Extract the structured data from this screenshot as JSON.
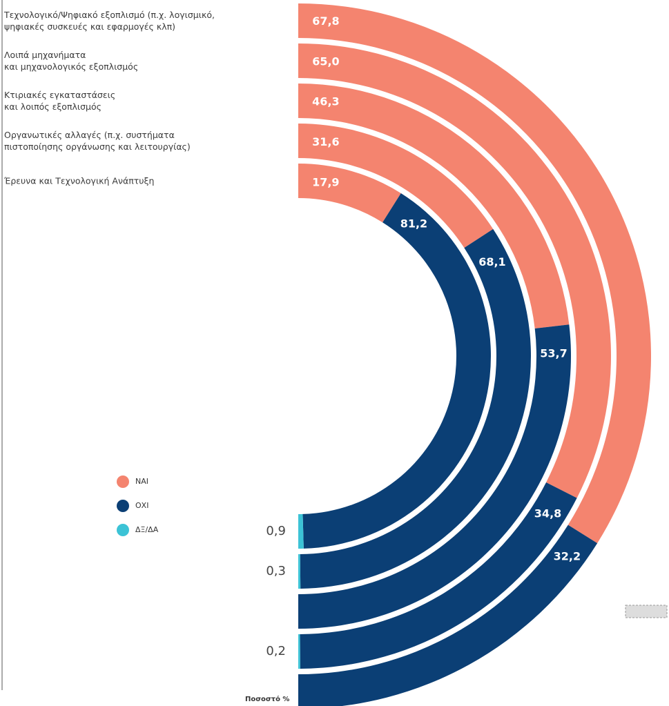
{
  "chart_data": {
    "type": "radial_bar",
    "categories": [
      "Τεχνολογικό/Ψηφιακό εξοπλισμό (π.χ. λογισμικό,\nψηφιακές συσκευές και εφαρμογές κλπ)",
      "Λοιπά μηχανήματα\nκαι μηχανολογικός εξοπλισμός",
      "Κτιριακές εγκαταστάσεις\nκαι λοιπός εξοπλισμός",
      "Οργανωτικές αλλαγές (π.χ. συστήματα\nπιστοποίησης οργάνωσης και λειτουργίας)",
      "Έρευνα και Τεχνολογική Ανάπτυξη"
    ],
    "series": [
      {
        "name": "ΝΑΙ",
        "color": "#f4846f",
        "values": [
          67.8,
          65.0,
          46.3,
          31.6,
          17.9
        ],
        "value_labels": [
          "67,8",
          "65,0",
          "46,3",
          "31,6",
          "17,9"
        ]
      },
      {
        "name": "ΟΧΙ",
        "color": "#0b3f75",
        "values": [
          32.2,
          34.8,
          53.7,
          68.1,
          81.2
        ],
        "value_labels": [
          "32,2",
          "34,8",
          "53,7",
          "68,1",
          "81,2"
        ]
      },
      {
        "name": "ΔΞ/ΔΑ",
        "color": "#3cc3d6",
        "values": [
          null,
          0.2,
          null,
          0.3,
          0.9
        ],
        "value_labels": [
          null,
          "0,2",
          null,
          "0,3",
          "0,9"
        ]
      }
    ],
    "axis_label": "Ποσοστό %"
  }
}
